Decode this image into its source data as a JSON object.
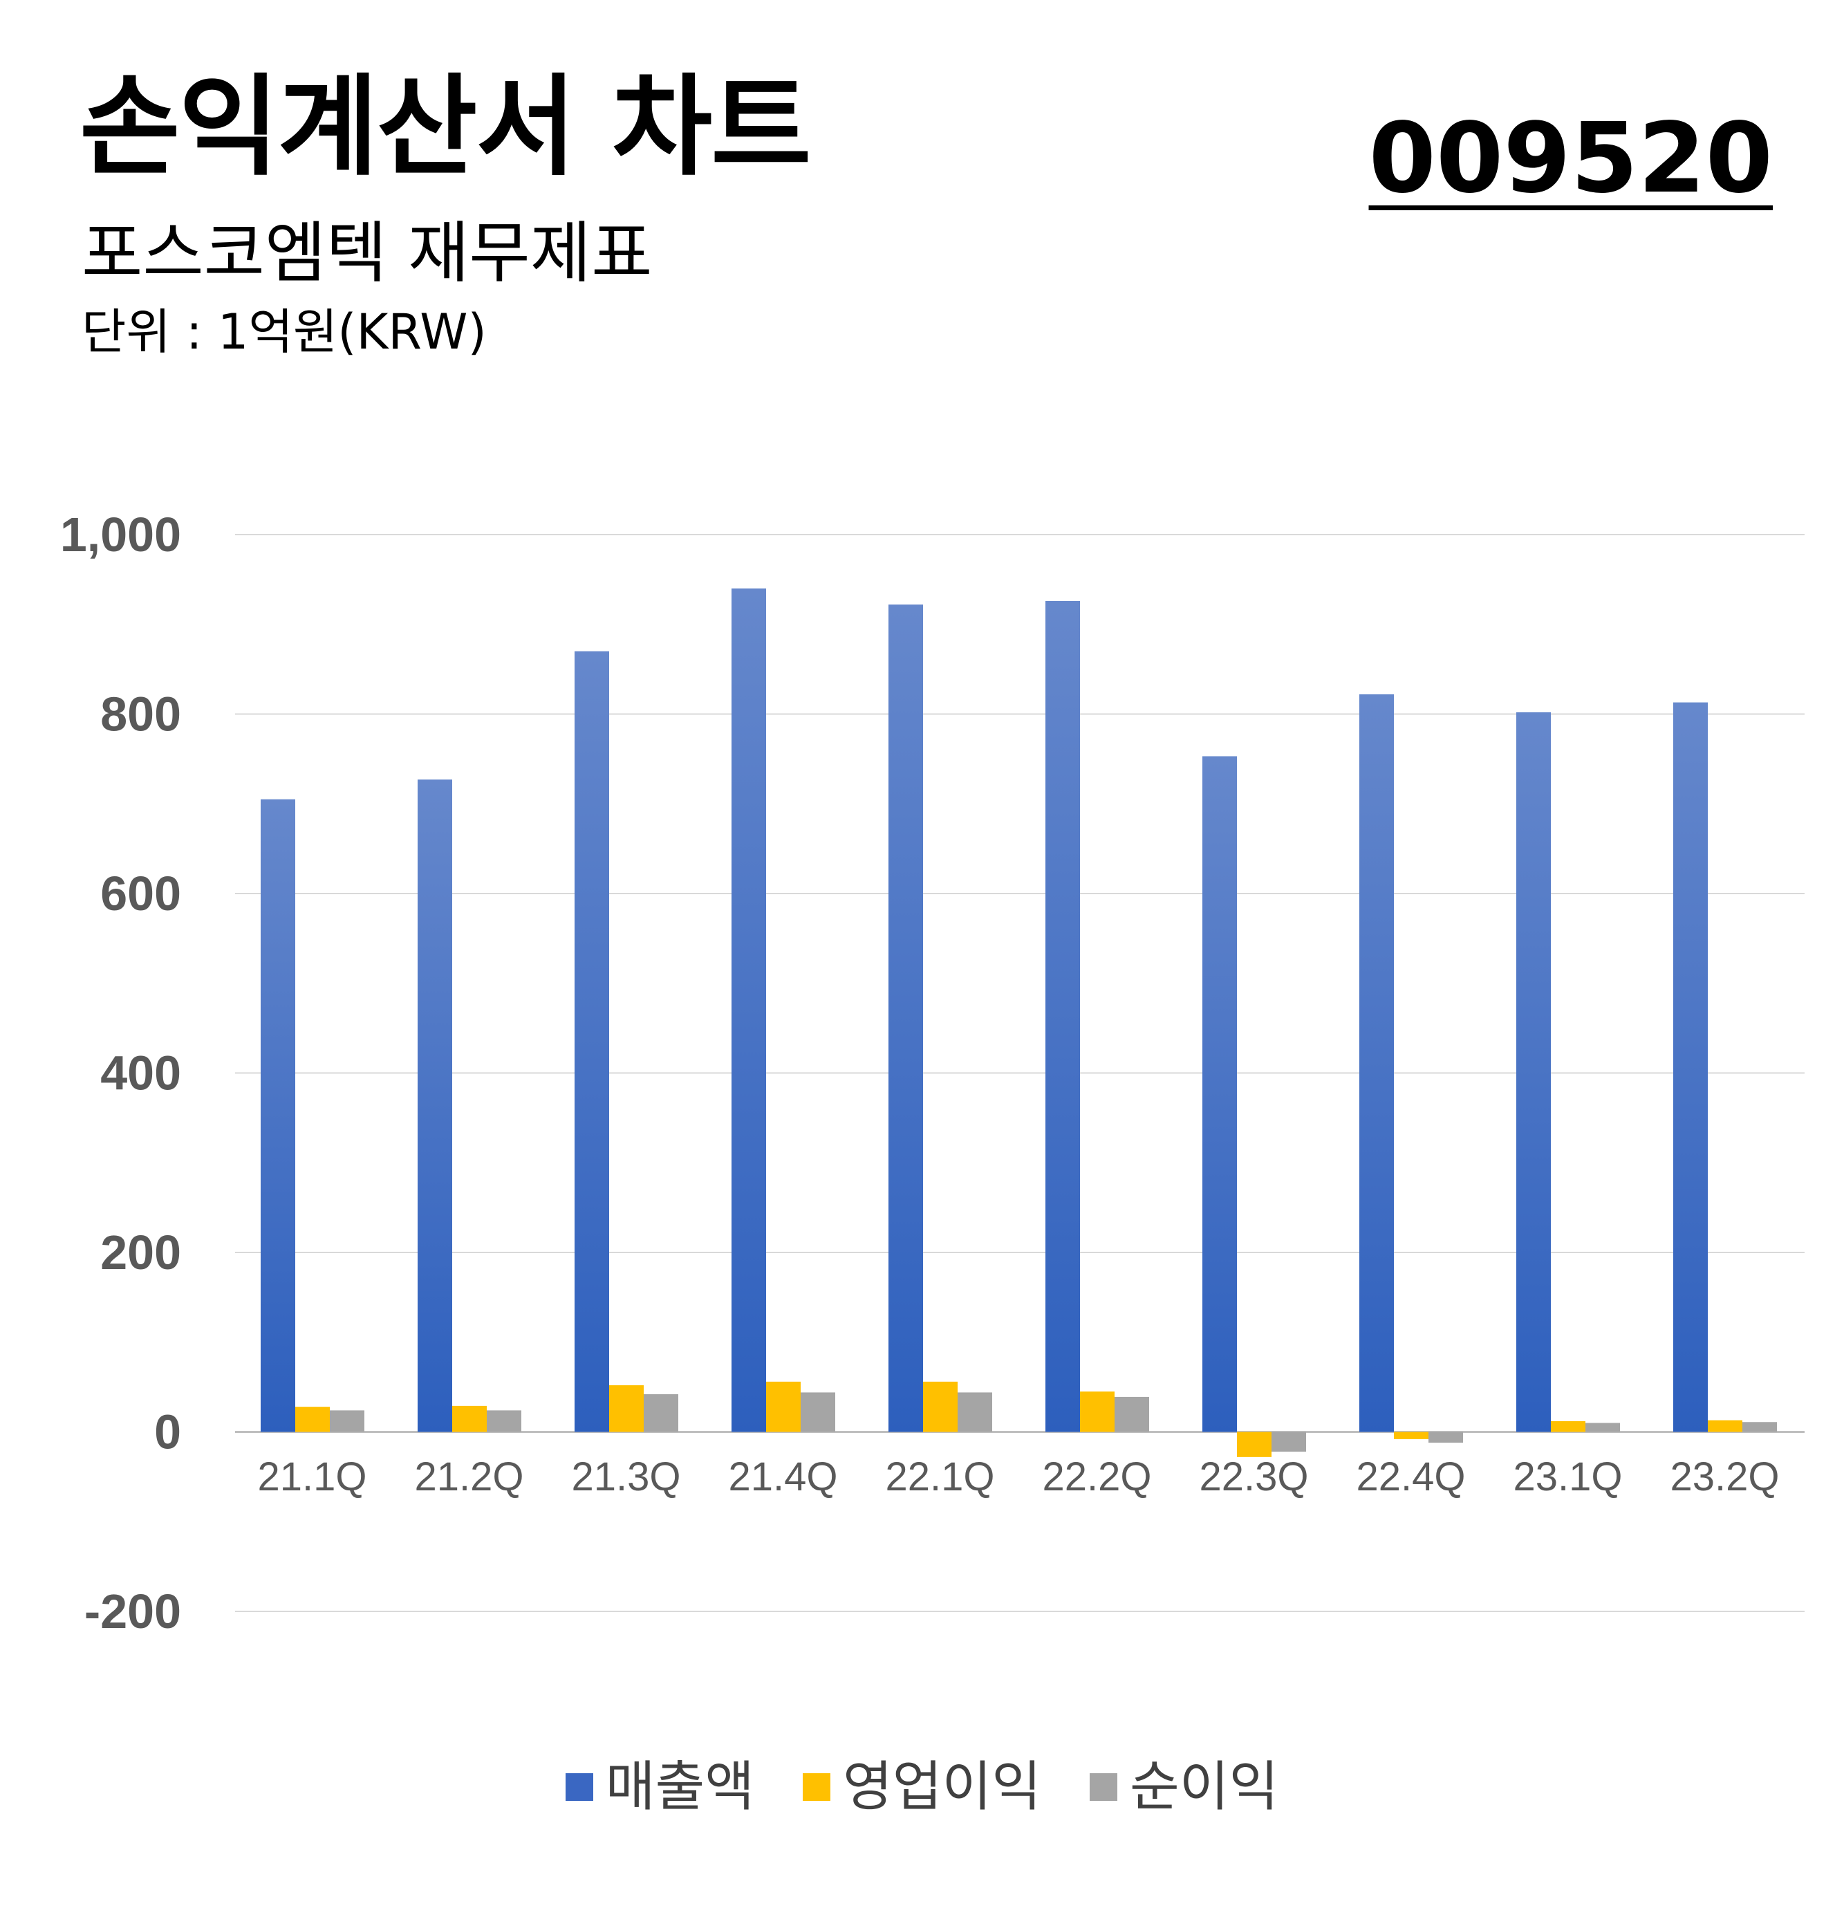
{
  "header": {
    "title": "손익계산서 차트",
    "subtitle": "포스코엠텍 재무제표",
    "unit": "단위 : 1억원(KRW)",
    "ticker": "009520"
  },
  "colors": {
    "revenue_top": "#6688cc",
    "revenue_bottom": "#2d5fbd",
    "operating_profit": "#ffc000",
    "net_income": "#a5a5a5",
    "gridline": "#d9d9d9",
    "tick_text": "#595959"
  },
  "chart_data": {
    "type": "bar",
    "categories": [
      "21.1Q",
      "21.2Q",
      "21.3Q",
      "21.4Q",
      "22.1Q",
      "22.2Q",
      "22.3Q",
      "22.4Q",
      "23.1Q",
      "23.2Q"
    ],
    "series": [
      {
        "name": "매출액",
        "values": [
          705,
          727,
          870,
          940,
          922,
          926,
          753,
          822,
          802,
          813
        ]
      },
      {
        "name": "영업이익",
        "values": [
          28,
          29,
          52,
          56,
          56,
          45,
          -28,
          -8,
          12,
          13
        ]
      },
      {
        "name": "순이익",
        "values": [
          24,
          24,
          42,
          44,
          44,
          39,
          -22,
          -12,
          10,
          11
        ]
      }
    ],
    "y_ticks": [
      "1,000",
      "800",
      "600",
      "400",
      "200",
      "0",
      "-200"
    ],
    "ylim": [
      -200,
      1000
    ],
    "grid": true,
    "legend_position": "bottom"
  }
}
